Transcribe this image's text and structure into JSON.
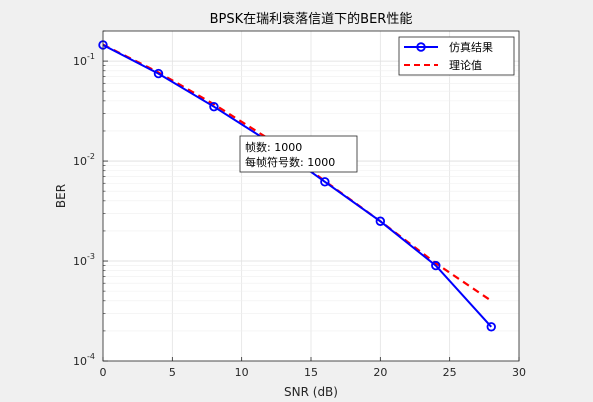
{
  "chart_data": {
    "type": "line",
    "title": "BPSK在瑞利衰落信道下的BER性能",
    "xlabel": "SNR (dB)",
    "ylabel": "BER",
    "xlim": [
      0,
      30
    ],
    "ylim": [
      0.0001,
      0.2
    ],
    "yscale": "log",
    "grid": true,
    "legend_position": "top-right",
    "x_ticks": [
      0,
      5,
      10,
      15,
      20,
      25,
      30
    ],
    "x_tick_labels": [
      "0",
      "5",
      "10",
      "15",
      "20",
      "25",
      "30"
    ],
    "y_ticks": [
      0.1,
      0.01,
      0.001,
      0.0001
    ],
    "y_tick_labels": [
      {
        "base": "10",
        "exp": "-1"
      },
      {
        "base": "10",
        "exp": "-2"
      },
      {
        "base": "10",
        "exp": "-3"
      },
      {
        "base": "10",
        "exp": "-4"
      }
    ],
    "series": [
      {
        "name": "仿真结果",
        "color": "#0000ff",
        "style": "solid-with-circle-markers",
        "x": [
          0,
          4,
          8,
          12,
          16,
          20,
          24,
          28
        ],
        "y": [
          0.145,
          0.075,
          0.035,
          0.0155,
          0.0062,
          0.0025,
          0.0009,
          0.00022
        ]
      },
      {
        "name": "理论值",
        "color": "#ff0000",
        "style": "dashed",
        "x": [
          0,
          4,
          8,
          12,
          16,
          20,
          24,
          28
        ],
        "y": [
          0.146,
          0.077,
          0.037,
          0.0165,
          0.0063,
          0.0025,
          0.00095,
          0.0004
        ]
      }
    ],
    "annotation": {
      "lines": [
        "帧数: 1000",
        "每帧符号数: 1000"
      ]
    }
  }
}
